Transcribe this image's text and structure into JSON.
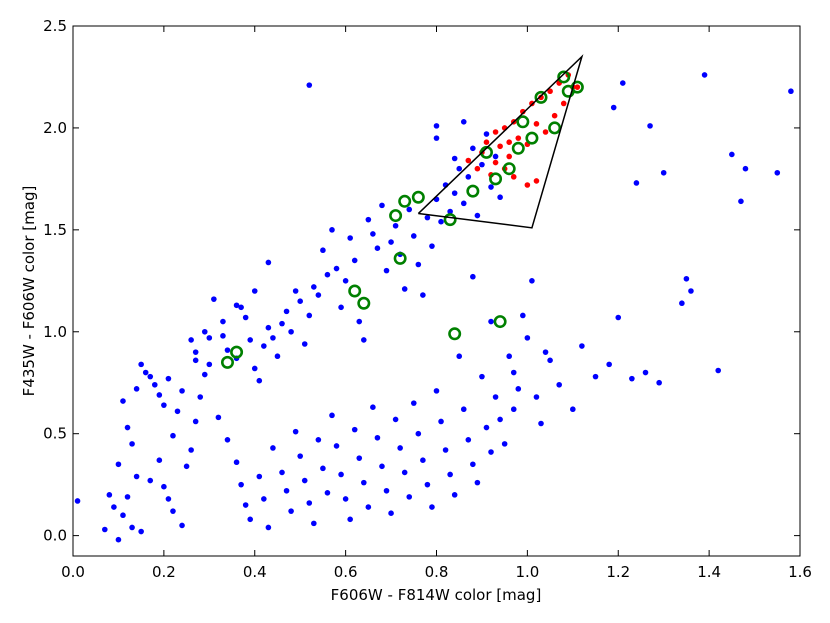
{
  "chart_data": {
    "type": "scatter",
    "title": "",
    "xlabel": "F606W - F814W color [mag]",
    "ylabel": "F435W - F606W color [mag]",
    "xlim": [
      0.0,
      1.6
    ],
    "ylim": [
      -0.1,
      2.5
    ],
    "x_ticks": [
      "0.0",
      "0.2",
      "0.4",
      "0.6",
      "0.8",
      "1.0",
      "1.2",
      "1.4",
      "1.6"
    ],
    "y_ticks": [
      "0.0",
      "0.5",
      "1.0",
      "1.5",
      "2.0",
      "2.5"
    ],
    "grid": false,
    "legend": "none",
    "colors": {
      "blue_points": "#0000ff",
      "red_points": "#ff0000",
      "green_rings": "#008000",
      "selection_polygon": "#000000"
    },
    "selection_polygon": [
      [
        0.76,
        1.58
      ],
      [
        1.12,
        2.35
      ],
      [
        1.01,
        1.51
      ],
      [
        0.76,
        1.58
      ]
    ],
    "series": [
      {
        "marker": "blue dot",
        "points": [
          [
            0.01,
            0.17
          ],
          [
            0.07,
            0.03
          ],
          [
            0.08,
            0.2
          ],
          [
            0.09,
            0.14
          ],
          [
            0.1,
            -0.02
          ],
          [
            0.11,
            0.1
          ],
          [
            0.12,
            0.19
          ],
          [
            0.13,
            0.04
          ],
          [
            0.14,
            0.29
          ],
          [
            0.15,
            0.02
          ],
          [
            0.1,
            0.35
          ],
          [
            0.13,
            0.45
          ],
          [
            0.12,
            0.53
          ],
          [
            0.11,
            0.66
          ],
          [
            0.14,
            0.72
          ],
          [
            0.15,
            0.84
          ],
          [
            0.16,
            0.8
          ],
          [
            0.17,
            0.78
          ],
          [
            0.18,
            0.74
          ],
          [
            0.19,
            0.69
          ],
          [
            0.2,
            0.64
          ],
          [
            0.21,
            0.77
          ],
          [
            0.22,
            0.49
          ],
          [
            0.19,
            0.37
          ],
          [
            0.17,
            0.27
          ],
          [
            0.2,
            0.24
          ],
          [
            0.21,
            0.18
          ],
          [
            0.22,
            0.12
          ],
          [
            0.24,
            0.05
          ],
          [
            0.25,
            0.34
          ],
          [
            0.26,
            0.42
          ],
          [
            0.27,
            0.56
          ],
          [
            0.28,
            0.68
          ],
          [
            0.29,
            0.79
          ],
          [
            0.3,
            0.84
          ],
          [
            0.27,
            0.9
          ],
          [
            0.26,
            0.96
          ],
          [
            0.29,
            1.0
          ],
          [
            0.31,
            1.16
          ],
          [
            0.33,
            0.98
          ],
          [
            0.34,
            0.91
          ],
          [
            0.36,
            0.87
          ],
          [
            0.37,
            1.12
          ],
          [
            0.38,
            1.07
          ],
          [
            0.39,
            0.96
          ],
          [
            0.4,
            0.82
          ],
          [
            0.41,
            0.76
          ],
          [
            0.42,
            0.93
          ],
          [
            0.43,
            1.02
          ],
          [
            0.44,
            0.97
          ],
          [
            0.45,
            0.88
          ],
          [
            0.46,
            1.04
          ],
          [
            0.47,
            1.1
          ],
          [
            0.48,
            1.0
          ],
          [
            0.49,
            1.2
          ],
          [
            0.5,
            1.15
          ],
          [
            0.51,
            0.94
          ],
          [
            0.52,
            1.08
          ],
          [
            0.53,
            1.22
          ],
          [
            0.54,
            1.18
          ],
          [
            0.55,
            1.4
          ],
          [
            0.56,
            1.28
          ],
          [
            0.57,
            1.5
          ],
          [
            0.58,
            1.31
          ],
          [
            0.59,
            1.12
          ],
          [
            0.6,
            1.25
          ],
          [
            0.61,
            1.46
          ],
          [
            0.62,
            1.35
          ],
          [
            0.63,
            1.05
          ],
          [
            0.64,
            0.96
          ],
          [
            0.65,
            1.55
          ],
          [
            0.66,
            1.48
          ],
          [
            0.67,
            1.41
          ],
          [
            0.68,
            1.62
          ],
          [
            0.69,
            1.3
          ],
          [
            0.7,
            1.44
          ],
          [
            0.71,
            1.52
          ],
          [
            0.72,
            1.38
          ],
          [
            0.73,
            1.21
          ],
          [
            0.74,
            1.6
          ],
          [
            0.75,
            1.47
          ],
          [
            0.76,
            1.33
          ],
          [
            0.77,
            1.18
          ],
          [
            0.78,
            1.56
          ],
          [
            0.79,
            1.42
          ],
          [
            0.8,
            1.65
          ],
          [
            0.81,
            1.54
          ],
          [
            0.82,
            1.72
          ],
          [
            0.83,
            1.59
          ],
          [
            0.84,
            1.68
          ],
          [
            0.85,
            1.8
          ],
          [
            0.86,
            1.63
          ],
          [
            0.87,
            1.76
          ],
          [
            0.88,
            1.9
          ],
          [
            0.89,
            1.57
          ],
          [
            0.9,
            1.82
          ],
          [
            0.91,
            1.97
          ],
          [
            0.92,
            1.71
          ],
          [
            0.93,
            1.86
          ],
          [
            0.94,
            1.66
          ],
          [
            0.32,
            0.58
          ],
          [
            0.34,
            0.47
          ],
          [
            0.36,
            0.36
          ],
          [
            0.37,
            0.25
          ],
          [
            0.38,
            0.15
          ],
          [
            0.39,
            0.08
          ],
          [
            0.41,
            0.29
          ],
          [
            0.42,
            0.18
          ],
          [
            0.43,
            0.04
          ],
          [
            0.44,
            0.43
          ],
          [
            0.46,
            0.31
          ],
          [
            0.47,
            0.22
          ],
          [
            0.48,
            0.12
          ],
          [
            0.49,
            0.51
          ],
          [
            0.5,
            0.39
          ],
          [
            0.51,
            0.27
          ],
          [
            0.52,
            0.16
          ],
          [
            0.53,
            0.06
          ],
          [
            0.54,
            0.47
          ],
          [
            0.55,
            0.33
          ],
          [
            0.56,
            0.21
          ],
          [
            0.57,
            0.59
          ],
          [
            0.58,
            0.44
          ],
          [
            0.59,
            0.3
          ],
          [
            0.6,
            0.18
          ],
          [
            0.61,
            0.08
          ],
          [
            0.62,
            0.52
          ],
          [
            0.63,
            0.38
          ],
          [
            0.64,
            0.26
          ],
          [
            0.65,
            0.14
          ],
          [
            0.66,
            0.63
          ],
          [
            0.67,
            0.48
          ],
          [
            0.68,
            0.34
          ],
          [
            0.69,
            0.22
          ],
          [
            0.7,
            0.11
          ],
          [
            0.71,
            0.57
          ],
          [
            0.72,
            0.43
          ],
          [
            0.73,
            0.31
          ],
          [
            0.74,
            0.19
          ],
          [
            0.75,
            0.65
          ],
          [
            0.76,
            0.5
          ],
          [
            0.77,
            0.37
          ],
          [
            0.78,
            0.25
          ],
          [
            0.79,
            0.14
          ],
          [
            0.8,
            0.71
          ],
          [
            0.81,
            0.56
          ],
          [
            0.82,
            0.42
          ],
          [
            0.83,
            0.3
          ],
          [
            0.84,
            0.2
          ],
          [
            0.85,
            0.88
          ],
          [
            0.86,
            0.62
          ],
          [
            0.87,
            0.47
          ],
          [
            0.88,
            0.35
          ],
          [
            0.89,
            0.26
          ],
          [
            0.9,
            0.78
          ],
          [
            0.91,
            0.53
          ],
          [
            0.92,
            0.41
          ],
          [
            0.93,
            0.68
          ],
          [
            0.94,
            0.57
          ],
          [
            0.95,
            0.45
          ],
          [
            0.96,
            0.88
          ],
          [
            0.97,
            0.62
          ],
          [
            0.98,
            0.72
          ],
          [
            1.0,
            0.97
          ],
          [
            1.02,
            0.68
          ],
          [
            1.03,
            0.55
          ],
          [
            1.05,
            0.86
          ],
          [
            1.07,
            0.74
          ],
          [
            1.1,
            0.62
          ],
          [
            1.12,
            0.93
          ],
          [
            1.15,
            0.78
          ],
          [
            1.18,
            0.84
          ],
          [
            1.2,
            1.07
          ],
          [
            1.23,
            0.77
          ],
          [
            1.26,
            0.8
          ],
          [
            1.29,
            0.75
          ],
          [
            1.3,
            1.78
          ],
          [
            1.24,
            1.73
          ],
          [
            1.21,
            2.22
          ],
          [
            1.19,
            2.1
          ],
          [
            1.27,
            2.01
          ],
          [
            1.34,
            1.14
          ],
          [
            1.35,
            1.26
          ],
          [
            1.36,
            1.2
          ],
          [
            1.39,
            2.26
          ],
          [
            1.42,
            0.81
          ],
          [
            1.45,
            1.87
          ],
          [
            1.47,
            1.64
          ],
          [
            1.48,
            1.8
          ],
          [
            1.55,
            1.78
          ],
          [
            1.58,
            2.18
          ],
          [
            0.52,
            2.21
          ],
          [
            0.43,
            1.34
          ],
          [
            0.4,
            1.2
          ],
          [
            0.36,
            1.13
          ],
          [
            0.33,
            1.05
          ],
          [
            0.3,
            0.97
          ],
          [
            0.27,
            0.86
          ],
          [
            0.24,
            0.71
          ],
          [
            0.23,
            0.61
          ],
          [
            0.8,
            1.95
          ],
          [
            0.84,
            1.85
          ],
          [
            0.86,
            2.03
          ],
          [
            0.8,
            2.01
          ],
          [
            0.97,
            0.8
          ],
          [
            0.99,
            1.08
          ],
          [
            1.01,
            1.25
          ],
          [
            1.04,
            0.9
          ],
          [
            0.92,
            1.05
          ],
          [
            0.88,
            1.27
          ]
        ]
      },
      {
        "marker": "red dot",
        "points": [
          [
            0.87,
            1.84
          ],
          [
            0.89,
            1.8
          ],
          [
            0.9,
            1.88
          ],
          [
            0.91,
            1.93
          ],
          [
            0.92,
            1.77
          ],
          [
            0.93,
            1.98
          ],
          [
            0.94,
            1.91
          ],
          [
            0.95,
            2.0
          ],
          [
            0.96,
            1.86
          ],
          [
            0.97,
            2.03
          ],
          [
            0.98,
            1.95
          ],
          [
            0.99,
            2.08
          ],
          [
            1.0,
            1.92
          ],
          [
            1.01,
            2.12
          ],
          [
            1.02,
            2.02
          ],
          [
            1.03,
            2.15
          ],
          [
            1.04,
            1.98
          ],
          [
            1.05,
            2.18
          ],
          [
            1.06,
            2.06
          ],
          [
            1.07,
            2.22
          ],
          [
            1.08,
            2.12
          ],
          [
            1.09,
            2.26
          ],
          [
            1.1,
            2.2
          ],
          [
            1.11,
            2.2
          ],
          [
            0.95,
            1.8
          ],
          [
            0.97,
            1.76
          ],
          [
            1.0,
            1.72
          ],
          [
            1.02,
            1.74
          ],
          [
            0.93,
            1.83
          ],
          [
            0.96,
            1.93
          ]
        ]
      },
      {
        "marker": "green ring",
        "points": [
          [
            0.34,
            0.85
          ],
          [
            0.36,
            0.9
          ],
          [
            0.62,
            1.2
          ],
          [
            0.64,
            1.14
          ],
          [
            0.72,
            1.36
          ],
          [
            0.71,
            1.57
          ],
          [
            0.73,
            1.64
          ],
          [
            0.76,
            1.66
          ],
          [
            0.83,
            1.55
          ],
          [
            0.84,
            0.99
          ],
          [
            0.94,
            1.05
          ],
          [
            0.88,
            1.69
          ],
          [
            0.91,
            1.88
          ],
          [
            0.93,
            1.75
          ],
          [
            0.96,
            1.8
          ],
          [
            0.98,
            1.9
          ],
          [
            0.99,
            2.03
          ],
          [
            1.01,
            1.95
          ],
          [
            1.03,
            2.15
          ],
          [
            1.06,
            2.0
          ],
          [
            1.08,
            2.25
          ],
          [
            1.09,
            2.18
          ],
          [
            1.11,
            2.2
          ]
        ]
      }
    ]
  }
}
